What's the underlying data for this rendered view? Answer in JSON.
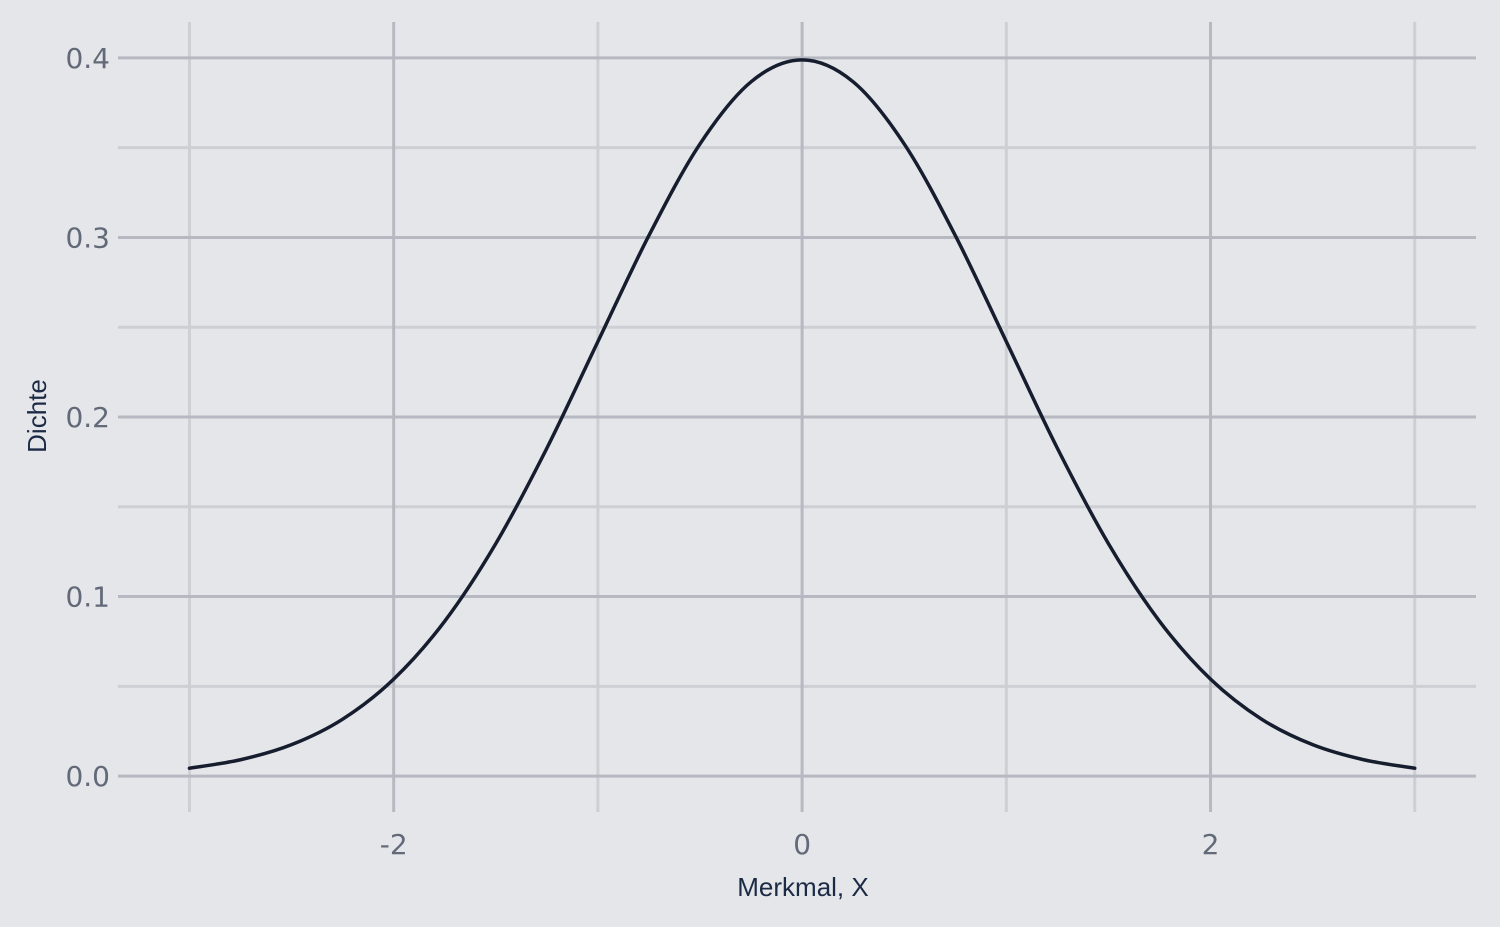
{
  "chart_data": {
    "type": "line",
    "title": "",
    "xlabel": "Merkmal, X",
    "ylabel": "Dichte",
    "xlim": [
      -3.35,
      3.3
    ],
    "ylim": [
      -0.02,
      0.42
    ],
    "x_ticks": [
      -2,
      0,
      2
    ],
    "x_tick_labels": [
      "-2",
      "0",
      "2"
    ],
    "x_minor_gridlines": [
      -3,
      -1,
      1,
      3
    ],
    "y_ticks": [
      0.0,
      0.1,
      0.2,
      0.3,
      0.4
    ],
    "y_tick_labels": [
      "0.0",
      "0.1",
      "0.2",
      "0.3",
      "0.4"
    ],
    "y_minor_gridlines": [
      0.05,
      0.15,
      0.25,
      0.35
    ],
    "grid": true,
    "legend": "none",
    "series": [
      {
        "x": [
          -3.0,
          -2.75,
          -2.5,
          -2.25,
          -2.0,
          -1.75,
          -1.5,
          -1.25,
          -1.0,
          -0.75,
          -0.5,
          -0.25,
          0.0,
          0.25,
          0.5,
          0.75,
          1.0,
          1.25,
          1.5,
          1.75,
          2.0,
          2.25,
          2.5,
          2.75,
          3.0
        ],
        "y": [
          0.0044,
          0.0091,
          0.0175,
          0.0317,
          0.054,
          0.0863,
          0.1295,
          0.1826,
          0.242,
          0.3011,
          0.3521,
          0.3867,
          0.3989,
          0.3867,
          0.3521,
          0.3011,
          0.242,
          0.1826,
          0.1295,
          0.0863,
          0.054,
          0.0317,
          0.0175,
          0.0091,
          0.0044
        ],
        "color": "#161d2e"
      }
    ],
    "colors": {
      "background": "#e5e6e9",
      "major_grid": "#b6b9c2",
      "minor_grid": "#cdcfd4",
      "line": "#161d2e"
    }
  }
}
